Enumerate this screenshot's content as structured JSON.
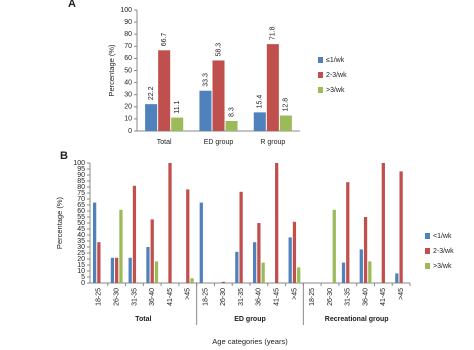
{
  "chart_data": [
    {
      "type": "bar",
      "panel": "A",
      "y_label": "Percentage (%)",
      "categories": [
        "Total",
        "ED group",
        "R group"
      ],
      "series": [
        {
          "name": "≤1/wk",
          "color": "#4f81bd",
          "values": [
            22.2,
            33.3,
            15.4
          ]
        },
        {
          "name": "2-3/wk",
          "color": "#c0504d",
          "values": [
            66.7,
            58.3,
            71.8
          ]
        },
        {
          "name": ">3/wk",
          "color": "#9bbb59",
          "values": [
            11.1,
            8.3,
            12.8
          ]
        }
      ],
      "ylim": [
        0,
        100
      ],
      "yticks": [
        0,
        10,
        20,
        30,
        40,
        50,
        60,
        70,
        80,
        90,
        100
      ],
      "show_value_labels": true
    },
    {
      "type": "bar",
      "panel": "B",
      "y_label": "Percentage (%)",
      "x_label": "Age categories (years)",
      "categories": [
        "18-25",
        "26-30",
        "31-35",
        "36-40",
        "41-45",
        ">45",
        "18-25",
        "26-30",
        "31-35",
        "36-40",
        "41-45",
        ">45",
        "18-25",
        "26-30",
        "31-35",
        "36-40",
        "41-45",
        ">45"
      ],
      "groups": [
        "Total",
        "ED group",
        "Recreational group"
      ],
      "series": [
        {
          "name": "<1/wk",
          "color": "#4f81bd",
          "values": [
            67,
            21,
            21,
            30,
            0,
            0,
            67,
            0,
            26,
            34,
            0,
            38,
            0,
            0,
            17,
            28,
            0,
            8
          ]
        },
        {
          "name": "2-3/wk",
          "color": "#c0504d",
          "values": [
            34,
            21,
            81,
            53,
            100,
            78,
            0,
            1,
            76,
            50,
            100,
            51,
            0,
            0,
            84,
            55,
            100,
            93
          ]
        },
        {
          "name": ">3/wk",
          "color": "#9bbb59",
          "values": [
            0,
            61,
            0,
            18,
            0,
            4,
            0,
            0,
            0,
            17,
            0,
            13,
            0,
            61,
            0,
            18,
            0,
            0
          ]
        }
      ],
      "ylim": [
        0,
        100
      ],
      "yticks": [
        0,
        5,
        10,
        15,
        20,
        25,
        30,
        35,
        40,
        45,
        50,
        55,
        60,
        65,
        70,
        75,
        80,
        85,
        90,
        95,
        100
      ],
      "show_value_labels": false
    }
  ]
}
